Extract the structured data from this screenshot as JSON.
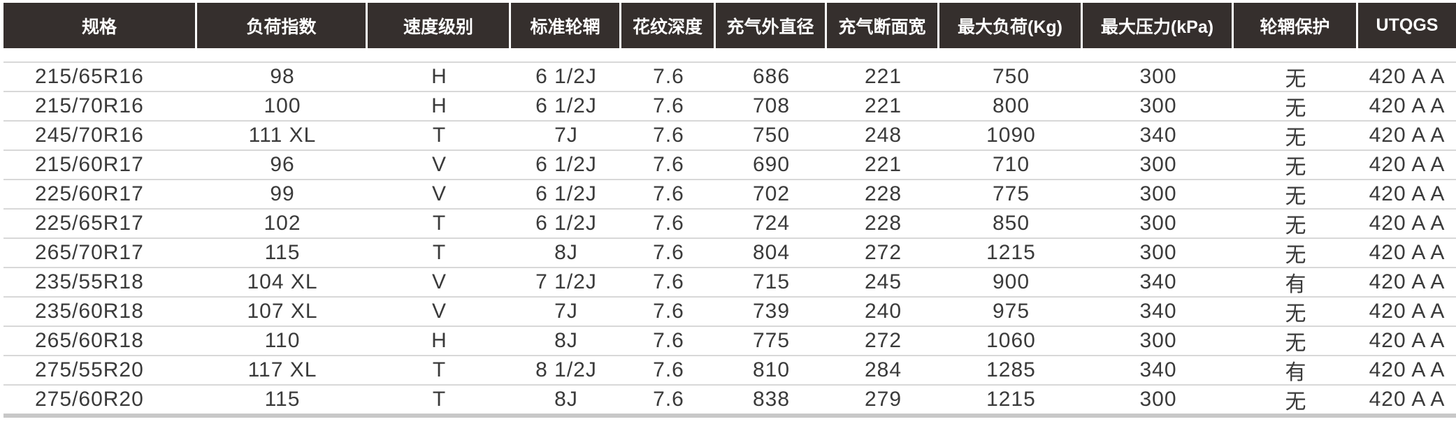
{
  "headers": [
    "规格",
    "负荷指数",
    "速度级别",
    "标准轮辋",
    "花纹深度",
    "充气外直径",
    "充气断面宽",
    "最大负荷(Kg)",
    "最大压力(kPa)",
    "轮辋保护",
    "UTQGS"
  ],
  "rows": [
    [
      "215/65R16",
      "98",
      "H",
      "6 1/2J",
      "7.6",
      "686",
      "221",
      "750",
      "300",
      "无",
      "420 A A"
    ],
    [
      "215/70R16",
      "100",
      "H",
      "6 1/2J",
      "7.6",
      "708",
      "221",
      "800",
      "300",
      "无",
      "420 A A"
    ],
    [
      "245/70R16",
      "111 XL",
      "T",
      "7J",
      "7.6",
      "750",
      "248",
      "1090",
      "340",
      "无",
      "420 A A"
    ],
    [
      "215/60R17",
      "96",
      "V",
      "6 1/2J",
      "7.6",
      "690",
      "221",
      "710",
      "300",
      "无",
      "420 A A"
    ],
    [
      "225/60R17",
      "99",
      "V",
      "6 1/2J",
      "7.6",
      "702",
      "228",
      "775",
      "300",
      "无",
      "420 A A"
    ],
    [
      "225/65R17",
      "102",
      "T",
      "6 1/2J",
      "7.6",
      "724",
      "228",
      "850",
      "300",
      "无",
      "420 A A"
    ],
    [
      "265/70R17",
      "115",
      "T",
      "8J",
      "7.6",
      "804",
      "272",
      "1215",
      "300",
      "无",
      "420 A A"
    ],
    [
      "235/55R18",
      "104 XL",
      "V",
      "7 1/2J",
      "7.6",
      "715",
      "245",
      "900",
      "340",
      "有",
      "420 A A"
    ],
    [
      "235/60R18",
      "107 XL",
      "V",
      "7J",
      "7.6",
      "739",
      "240",
      "975",
      "340",
      "无",
      "420 A A"
    ],
    [
      "265/60R18",
      "110",
      "H",
      "8J",
      "7.6",
      "775",
      "272",
      "1060",
      "300",
      "无",
      "420 A A"
    ],
    [
      "275/55R20",
      "117 XL",
      "T",
      "8 1/2J",
      "7.6",
      "810",
      "284",
      "1285",
      "340",
      "有",
      "420 A A"
    ],
    [
      "275/60R20",
      "115",
      "T",
      "8J",
      "7.6",
      "838",
      "279",
      "1215",
      "300",
      "无",
      "420 A A"
    ]
  ],
  "colors": {
    "header_bg": "#352f2d",
    "header_text": "#ffffff",
    "row_line": "#d8d8d8"
  }
}
